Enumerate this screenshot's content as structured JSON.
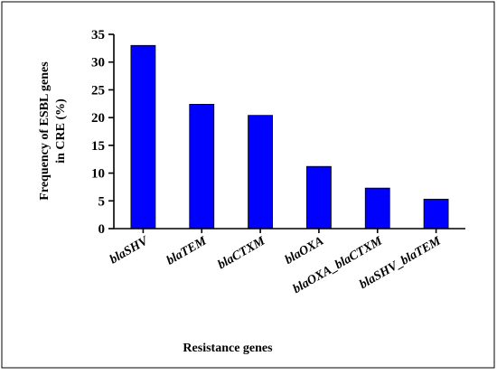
{
  "chart_data": {
    "type": "bar",
    "categories": [
      "blaSHV",
      "blaTEM",
      "blaCTXM",
      "blaOXA",
      "blaOXA_blaCTXM",
      "blaSHV_blaTEM"
    ],
    "values": [
      33,
      22.4,
      20.4,
      11.2,
      7.3,
      5.3
    ],
    "xlabel": "Resistance genes",
    "ylabel_line1": "Frequency of ESBL genes",
    "ylabel_line2": "in CRE (%)",
    "ylim": [
      0,
      35
    ],
    "yticks": [
      0,
      5,
      10,
      15,
      20,
      25,
      30,
      35
    ],
    "bar_color": "#0000ff",
    "grid": false,
    "legend": "none"
  }
}
